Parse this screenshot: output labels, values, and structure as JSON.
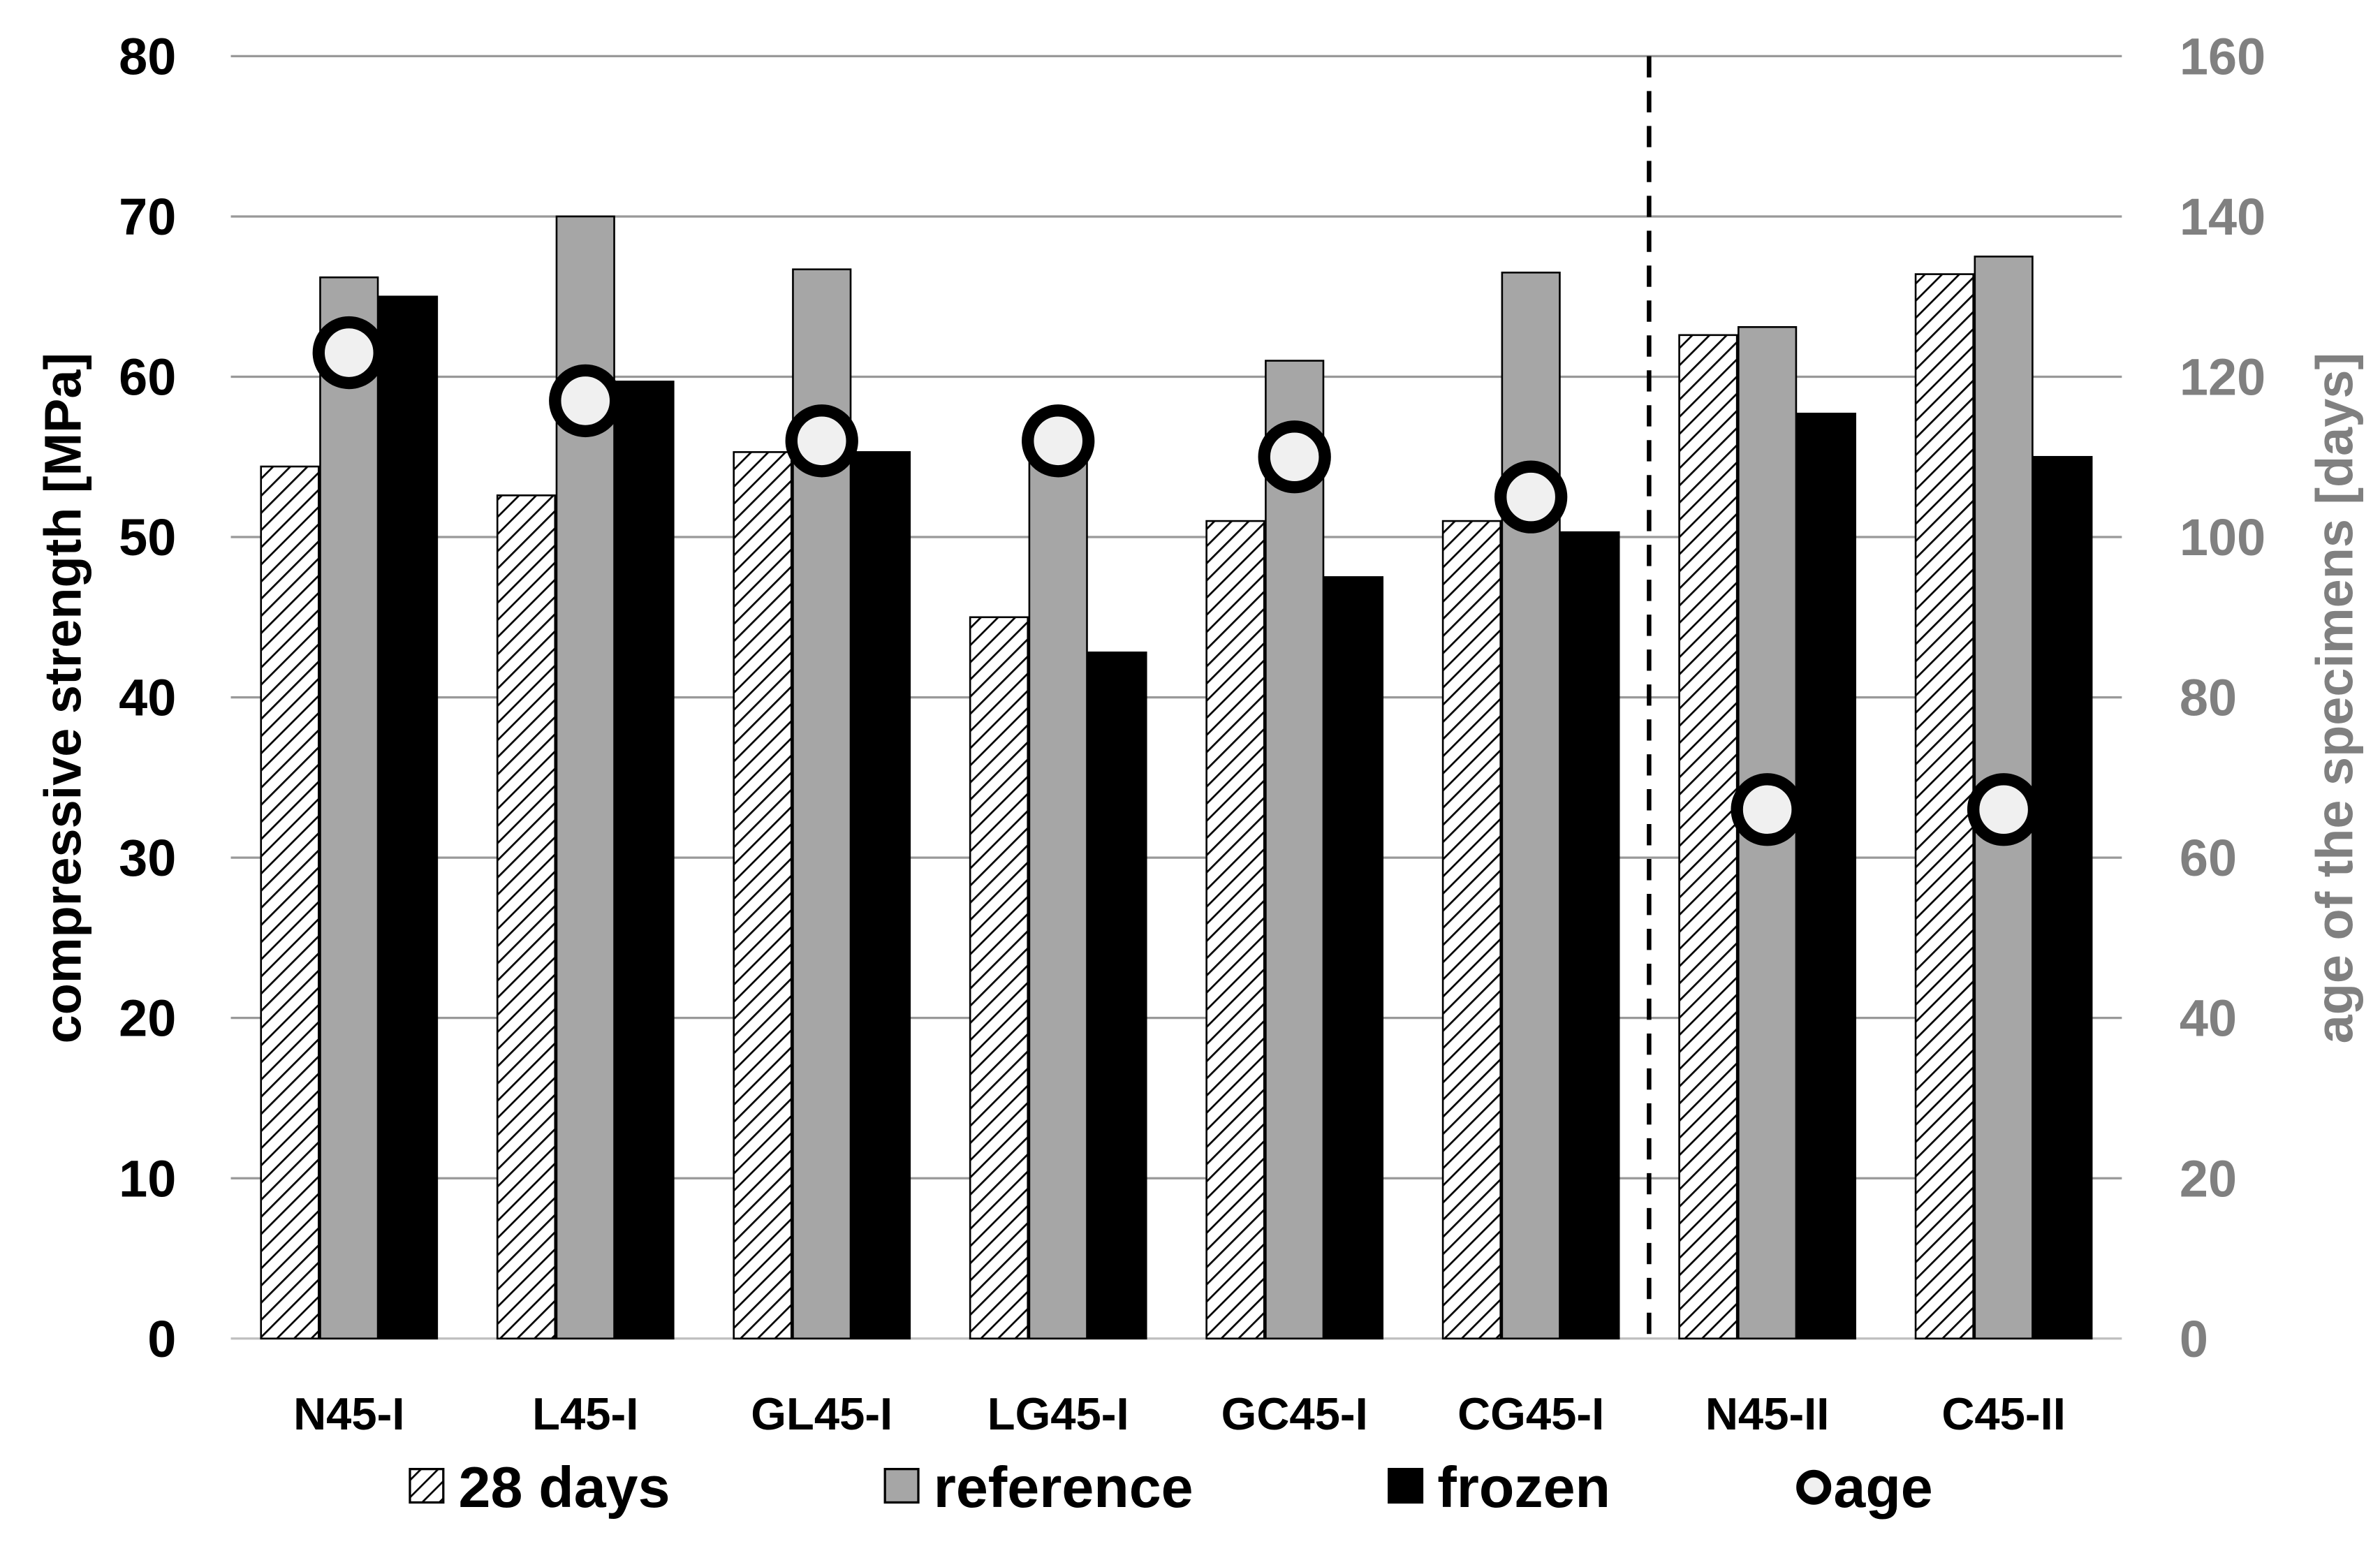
{
  "chart_data": {
    "type": "bar",
    "categories": [
      "N45-I",
      "L45-I",
      "GL45-I",
      "LG45-I",
      "GC45-I",
      "CG45-I",
      "N45-II",
      "C45-II"
    ],
    "series": [
      {
        "name": "28 days",
        "axis": "left",
        "pattern": "hatched",
        "values": [
          54.4,
          52.6,
          55.3,
          45.0,
          51.0,
          51.0,
          62.6,
          66.4
        ]
      },
      {
        "name": "reference",
        "axis": "left",
        "color": "#a6a6a6",
        "values": [
          66.2,
          70.0,
          66.7,
          55.0,
          61.0,
          66.5,
          63.1,
          67.5
        ]
      },
      {
        "name": "frozen",
        "axis": "left",
        "color": "#000000",
        "values": [
          65.0,
          59.7,
          55.3,
          42.8,
          47.5,
          50.3,
          57.7,
          55.0
        ]
      },
      {
        "name": "age",
        "axis": "right",
        "type": "scatter",
        "marker": "circle",
        "values": [
          123,
          117,
          112,
          112,
          110,
          105,
          66,
          66
        ]
      }
    ],
    "ylabel": "compressive strength [MPa]",
    "ylabel_right": "age of the specimens [days]",
    "ylim": [
      0,
      80
    ],
    "ylim_right": [
      0,
      160
    ],
    "yticks": [
      "0",
      "10",
      "20",
      "30",
      "40",
      "50",
      "60",
      "70",
      "80"
    ],
    "yticks_right": [
      "0",
      "20",
      "40",
      "60",
      "80",
      "100",
      "120",
      "140",
      "160"
    ],
    "grid": true,
    "legend_position": "bottom",
    "separator_after_category": "CG45-I",
    "colors": {
      "axis_right_text": "#808080",
      "marker_fill": "#f0f0f0"
    }
  }
}
